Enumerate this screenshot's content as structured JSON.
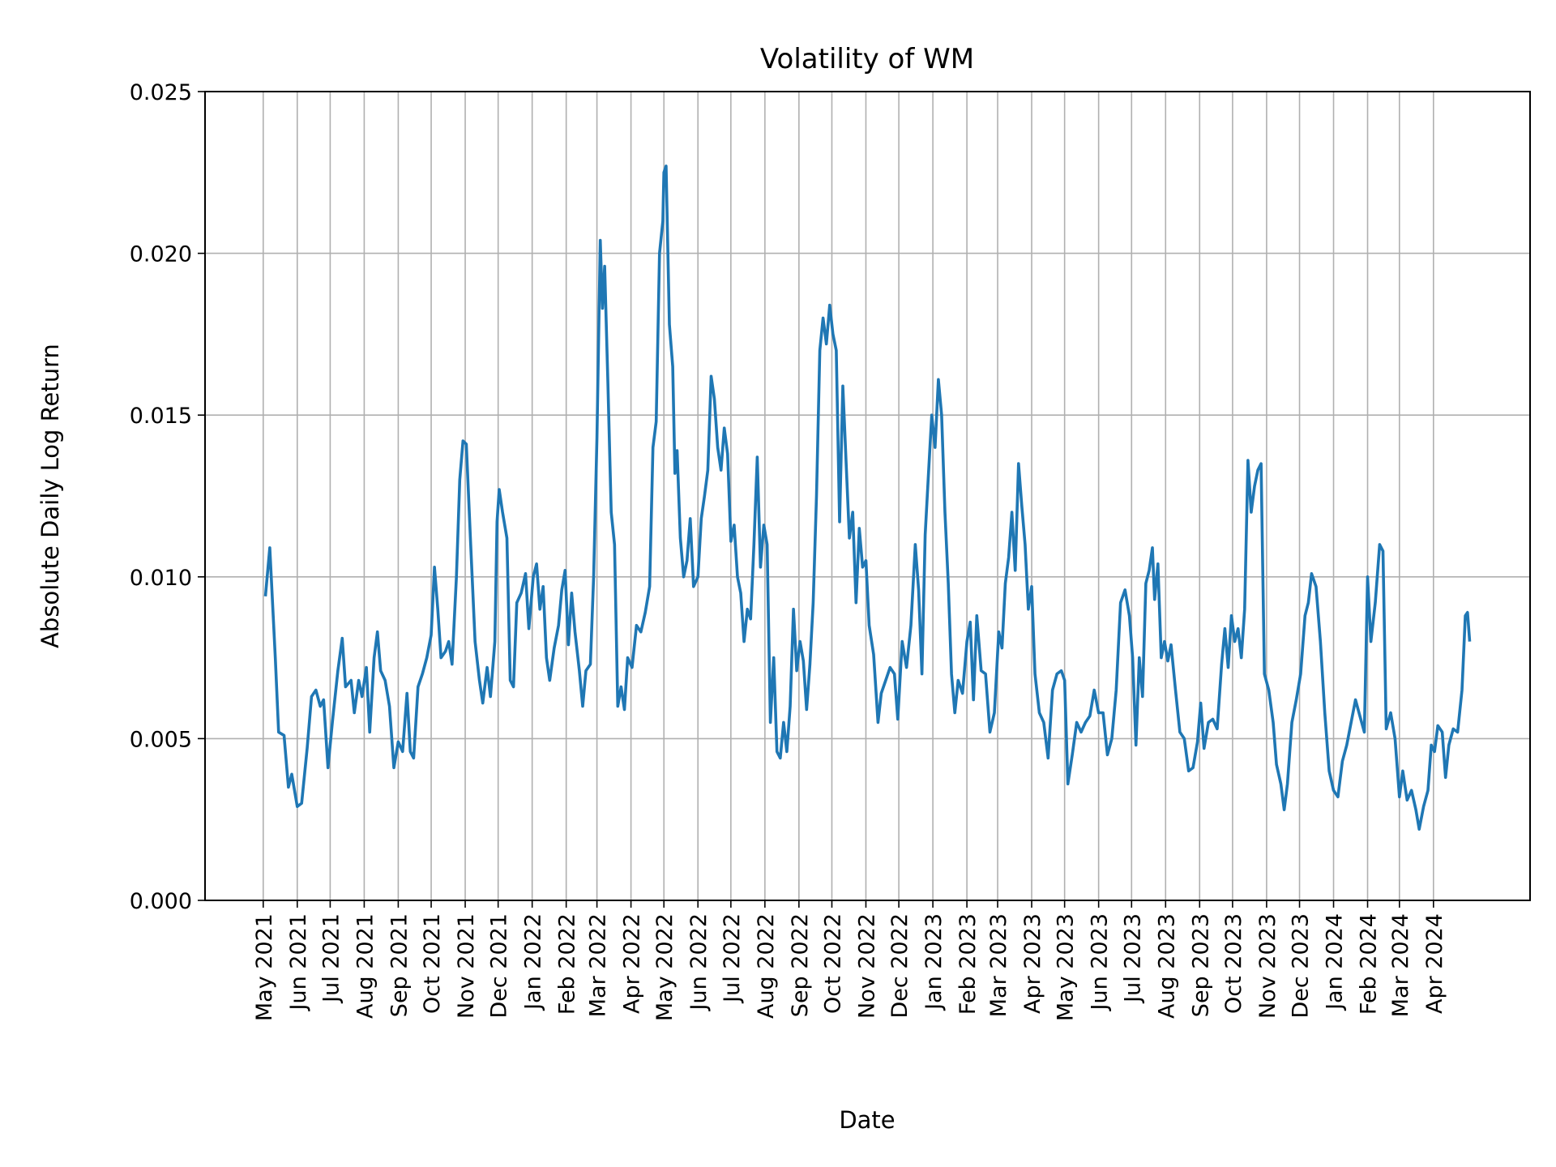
{
  "chart_data": {
    "type": "line",
    "title": "Volatility of WM",
    "xlabel": "Date",
    "ylabel": "Absolute Daily Log Return",
    "ylim": [
      0,
      0.025
    ],
    "xlim": [
      "2021-03-09",
      "2024-06-28"
    ],
    "grid": true,
    "line_color": "#1f77b4",
    "yticks": [
      "0.000",
      "0.005",
      "0.010",
      "0.015",
      "0.020",
      "0.025"
    ],
    "xticks": [
      {
        "date": "2021-05-01",
        "label": "May 2021"
      },
      {
        "date": "2021-06-01",
        "label": "Jun 2021"
      },
      {
        "date": "2021-07-01",
        "label": "Jul 2021"
      },
      {
        "date": "2021-08-01",
        "label": "Aug 2021"
      },
      {
        "date": "2021-09-01",
        "label": "Sep 2021"
      },
      {
        "date": "2021-10-01",
        "label": "Oct 2021"
      },
      {
        "date": "2021-11-01",
        "label": "Nov 2021"
      },
      {
        "date": "2021-12-01",
        "label": "Dec 2021"
      },
      {
        "date": "2022-01-01",
        "label": "Jan 2022"
      },
      {
        "date": "2022-02-01",
        "label": "Feb 2022"
      },
      {
        "date": "2022-03-01",
        "label": "Mar 2022"
      },
      {
        "date": "2022-04-01",
        "label": "Apr 2022"
      },
      {
        "date": "2022-05-01",
        "label": "May 2022"
      },
      {
        "date": "2022-06-01",
        "label": "Jun 2022"
      },
      {
        "date": "2022-07-01",
        "label": "Jul 2022"
      },
      {
        "date": "2022-08-01",
        "label": "Aug 2022"
      },
      {
        "date": "2022-09-01",
        "label": "Sep 2022"
      },
      {
        "date": "2022-10-01",
        "label": "Oct 2022"
      },
      {
        "date": "2022-11-01",
        "label": "Nov 2022"
      },
      {
        "date": "2022-12-01",
        "label": "Dec 2022"
      },
      {
        "date": "2023-01-01",
        "label": "Jan 2023"
      },
      {
        "date": "2023-02-01",
        "label": "Feb 2023"
      },
      {
        "date": "2023-03-01",
        "label": "Mar 2023"
      },
      {
        "date": "2023-04-01",
        "label": "Apr 2023"
      },
      {
        "date": "2023-05-01",
        "label": "May 2023"
      },
      {
        "date": "2023-06-01",
        "label": "Jun 2023"
      },
      {
        "date": "2023-07-01",
        "label": "Jul 2023"
      },
      {
        "date": "2023-08-01",
        "label": "Aug 2023"
      },
      {
        "date": "2023-09-01",
        "label": "Sep 2023"
      },
      {
        "date": "2023-10-01",
        "label": "Oct 2023"
      },
      {
        "date": "2023-11-01",
        "label": "Nov 2023"
      },
      {
        "date": "2023-12-01",
        "label": "Dec 2023"
      },
      {
        "date": "2024-01-01",
        "label": "Jan 2024"
      },
      {
        "date": "2024-02-01",
        "label": "Feb 2024"
      },
      {
        "date": "2024-03-01",
        "label": "Mar 2024"
      },
      {
        "date": "2024-04-01",
        "label": "Apr 2024"
      }
    ],
    "series": [
      {
        "x": [
          "2021-05-03",
          "2021-05-07",
          "2021-05-12",
          "2021-05-15",
          "2021-05-20",
          "2021-05-24",
          "2021-05-27",
          "2021-06-01",
          "2021-06-05",
          "2021-06-10",
          "2021-06-14",
          "2021-06-18",
          "2021-06-22",
          "2021-06-25",
          "2021-06-29",
          "2021-07-03",
          "2021-07-08",
          "2021-07-12",
          "2021-07-15",
          "2021-07-20",
          "2021-07-23",
          "2021-07-27",
          "2021-07-30",
          "2021-08-03",
          "2021-08-06",
          "2021-08-10",
          "2021-08-13",
          "2021-08-16",
          "2021-08-20",
          "2021-08-24",
          "2021-08-28",
          "2021-09-01",
          "2021-09-05",
          "2021-09-09",
          "2021-09-12",
          "2021-09-15",
          "2021-09-19",
          "2021-09-23",
          "2021-09-27",
          "2021-10-01",
          "2021-10-04",
          "2021-10-07",
          "2021-10-10",
          "2021-10-14",
          "2021-10-17",
          "2021-10-20",
          "2021-10-24",
          "2021-10-27",
          "2021-10-30",
          "2021-11-02",
          "2021-11-06",
          "2021-11-10",
          "2021-11-14",
          "2021-11-17",
          "2021-11-21",
          "2021-11-24",
          "2021-11-28",
          "2021-11-30",
          "2021-12-02",
          "2021-12-05",
          "2021-12-09",
          "2021-12-12",
          "2021-12-15",
          "2021-12-18",
          "2021-12-22",
          "2021-12-26",
          "2021-12-29",
          "2022-01-02",
          "2022-01-05",
          "2022-01-08",
          "2022-01-11",
          "2022-01-14",
          "2022-01-17",
          "2022-01-21",
          "2022-01-25",
          "2022-01-28",
          "2022-01-31",
          "2022-02-03",
          "2022-02-06",
          "2022-02-09",
          "2022-02-13",
          "2022-02-16",
          "2022-02-19",
          "2022-02-23",
          "2022-02-26",
          "2022-03-01",
          "2022-03-04",
          "2022-03-06",
          "2022-03-08",
          "2022-03-11",
          "2022-03-14",
          "2022-03-17",
          "2022-03-20",
          "2022-03-23",
          "2022-03-26",
          "2022-03-29",
          "2022-04-02",
          "2022-04-06",
          "2022-04-10",
          "2022-04-14",
          "2022-04-18",
          "2022-04-21",
          "2022-04-24",
          "2022-04-27",
          "2022-04-30",
          "2022-05-01",
          "2022-05-03",
          "2022-05-06",
          "2022-05-09",
          "2022-05-11",
          "2022-05-13",
          "2022-05-16",
          "2022-05-19",
          "2022-05-22",
          "2022-05-25",
          "2022-05-28",
          "2022-06-01",
          "2022-06-04",
          "2022-06-07",
          "2022-06-10",
          "2022-06-13",
          "2022-06-16",
          "2022-06-19",
          "2022-06-22",
          "2022-06-25",
          "2022-06-28",
          "2022-07-01",
          "2022-07-04",
          "2022-07-07",
          "2022-07-10",
          "2022-07-13",
          "2022-07-16",
          "2022-07-19",
          "2022-07-22",
          "2022-07-25",
          "2022-07-28",
          "2022-07-31",
          "2022-08-03",
          "2022-08-06",
          "2022-08-09",
          "2022-08-12",
          "2022-08-15",
          "2022-08-18",
          "2022-08-21",
          "2022-08-24",
          "2022-08-27",
          "2022-08-30",
          "2022-09-02",
          "2022-09-05",
          "2022-09-08",
          "2022-09-11",
          "2022-09-14",
          "2022-09-17",
          "2022-09-20",
          "2022-09-23",
          "2022-09-26",
          "2022-09-29",
          "2022-10-02",
          "2022-10-05",
          "2022-10-08",
          "2022-10-11",
          "2022-10-14",
          "2022-10-17",
          "2022-10-20",
          "2022-10-23",
          "2022-10-26",
          "2022-10-29",
          "2022-11-01",
          "2022-11-04",
          "2022-11-08",
          "2022-11-12",
          "2022-11-15",
          "2022-11-19",
          "2022-11-23",
          "2022-11-27",
          "2022-11-30",
          "2022-12-04",
          "2022-12-08",
          "2022-12-12",
          "2022-12-16",
          "2022-12-19",
          "2022-12-22",
          "2022-12-25",
          "2022-12-28",
          "2022-12-31",
          "2023-01-03",
          "2023-01-06",
          "2023-01-09",
          "2023-01-12",
          "2023-01-15",
          "2023-01-18",
          "2023-01-21",
          "2023-01-24",
          "2023-01-28",
          "2023-02-01",
          "2023-02-04",
          "2023-02-07",
          "2023-02-10",
          "2023-02-14",
          "2023-02-18",
          "2023-02-22",
          "2023-02-26",
          "2023-03-02",
          "2023-03-05",
          "2023-03-08",
          "2023-03-11",
          "2023-03-14",
          "2023-03-17",
          "2023-03-20",
          "2023-03-23",
          "2023-03-26",
          "2023-03-29",
          "2023-04-01",
          "2023-04-04",
          "2023-04-08",
          "2023-04-12",
          "2023-04-16",
          "2023-04-20",
          "2023-04-24",
          "2023-04-28",
          "2023-05-01",
          "2023-05-04",
          "2023-05-08",
          "2023-05-12",
          "2023-05-16",
          "2023-05-20",
          "2023-05-24",
          "2023-05-28",
          "2023-06-01",
          "2023-06-05",
          "2023-06-09",
          "2023-06-13",
          "2023-06-17",
          "2023-06-21",
          "2023-06-25",
          "2023-06-29",
          "2023-07-02",
          "2023-07-05",
          "2023-07-08",
          "2023-07-11",
          "2023-07-14",
          "2023-07-17",
          "2023-07-20",
          "2023-07-22",
          "2023-07-25",
          "2023-07-28",
          "2023-07-31",
          "2023-08-03",
          "2023-08-06",
          "2023-08-10",
          "2023-08-14",
          "2023-08-18",
          "2023-08-22",
          "2023-08-26",
          "2023-08-30",
          "2023-09-02",
          "2023-09-05",
          "2023-09-09",
          "2023-09-13",
          "2023-09-17",
          "2023-09-21",
          "2023-09-24",
          "2023-09-27",
          "2023-09-30",
          "2023-10-03",
          "2023-10-06",
          "2023-10-09",
          "2023-10-12",
          "2023-10-15",
          "2023-10-18",
          "2023-10-21",
          "2023-10-24",
          "2023-10-27",
          "2023-10-30",
          "2023-11-03",
          "2023-11-07",
          "2023-11-10",
          "2023-11-14",
          "2023-11-17",
          "2023-11-20",
          "2023-11-24",
          "2023-11-28",
          "2023-12-02",
          "2023-12-06",
          "2023-12-09",
          "2023-12-12",
          "2023-12-16",
          "2023-12-20",
          "2023-12-24",
          "2023-12-28",
          "2024-01-01",
          "2024-01-05",
          "2024-01-09",
          "2024-01-13",
          "2024-01-17",
          "2024-01-21",
          "2024-01-25",
          "2024-01-29",
          "2024-02-01",
          "2024-02-04",
          "2024-02-08",
          "2024-02-12",
          "2024-02-15",
          "2024-02-18",
          "2024-02-22",
          "2024-02-26",
          "2024-03-01",
          "2024-03-04",
          "2024-03-08",
          "2024-03-12",
          "2024-03-16",
          "2024-03-19",
          "2024-03-23",
          "2024-03-27",
          "2024-03-30",
          "2024-04-02",
          "2024-04-05",
          "2024-04-09",
          "2024-04-12",
          "2024-04-15",
          "2024-04-19",
          "2024-04-23",
          "2024-04-27",
          "2024-04-30",
          "2024-05-02",
          "2024-05-04"
        ],
        "y": [
          0.0094,
          0.0109,
          0.0075,
          0.0052,
          0.0051,
          0.0035,
          0.0039,
          0.0029,
          0.003,
          0.0047,
          0.0063,
          0.0065,
          0.006,
          0.0062,
          0.0041,
          0.0055,
          0.0071,
          0.0081,
          0.0066,
          0.0068,
          0.0058,
          0.0068,
          0.0063,
          0.0072,
          0.0052,
          0.0075,
          0.0083,
          0.0071,
          0.0068,
          0.006,
          0.0041,
          0.0049,
          0.0046,
          0.0064,
          0.0046,
          0.0044,
          0.0066,
          0.007,
          0.0075,
          0.0082,
          0.0103,
          0.009,
          0.0075,
          0.0077,
          0.008,
          0.0073,
          0.01,
          0.013,
          0.0142,
          0.0141,
          0.011,
          0.008,
          0.0068,
          0.0061,
          0.0072,
          0.0063,
          0.008,
          0.0117,
          0.0127,
          0.012,
          0.0112,
          0.0068,
          0.0066,
          0.0092,
          0.0095,
          0.0101,
          0.0084,
          0.01,
          0.0104,
          0.009,
          0.0097,
          0.0075,
          0.0068,
          0.0078,
          0.0085,
          0.0096,
          0.0102,
          0.0079,
          0.0095,
          0.0083,
          0.0071,
          0.006,
          0.0071,
          0.0073,
          0.01,
          0.0143,
          0.0204,
          0.0183,
          0.0196,
          0.016,
          0.012,
          0.011,
          0.006,
          0.0066,
          0.0059,
          0.0075,
          0.0072,
          0.0085,
          0.0083,
          0.0089,
          0.0097,
          0.014,
          0.0148,
          0.02,
          0.021,
          0.0225,
          0.0227,
          0.0178,
          0.0165,
          0.0132,
          0.0139,
          0.0112,
          0.01,
          0.0105,
          0.0118,
          0.0097,
          0.01,
          0.0118,
          0.0125,
          0.0133,
          0.0162,
          0.0155,
          0.014,
          0.0133,
          0.0146,
          0.0138,
          0.0111,
          0.0116,
          0.01,
          0.0095,
          0.008,
          0.009,
          0.0087,
          0.011,
          0.0137,
          0.0103,
          0.0116,
          0.011,
          0.0055,
          0.0075,
          0.0046,
          0.0044,
          0.0055,
          0.0046,
          0.006,
          0.009,
          0.0071,
          0.008,
          0.0074,
          0.0059,
          0.0073,
          0.0092,
          0.0125,
          0.017,
          0.018,
          0.0172,
          0.0184,
          0.0175,
          0.017,
          0.0117,
          0.0159,
          0.0135,
          0.0112,
          0.012,
          0.0092,
          0.0115,
          0.0103,
          0.0105,
          0.0085,
          0.0076,
          0.0055,
          0.0064,
          0.0068,
          0.0072,
          0.007,
          0.0056,
          0.008,
          0.0072,
          0.0085,
          0.011,
          0.0096,
          0.007,
          0.0113,
          0.0132,
          0.015,
          0.014,
          0.0161,
          0.015,
          0.012,
          0.0098,
          0.007,
          0.0058,
          0.0068,
          0.0064,
          0.008,
          0.0086,
          0.0062,
          0.0088,
          0.0071,
          0.007,
          0.0052,
          0.0058,
          0.0083,
          0.0078,
          0.0098,
          0.0106,
          0.012,
          0.0102,
          0.0135,
          0.0122,
          0.011,
          0.009,
          0.0097,
          0.007,
          0.0058,
          0.0055,
          0.0044,
          0.0065,
          0.007,
          0.0071,
          0.0068,
          0.0036,
          0.0045,
          0.0055,
          0.0052,
          0.0055,
          0.0057,
          0.0065,
          0.0058,
          0.0058,
          0.0045,
          0.005,
          0.0065,
          0.0092,
          0.0096,
          0.0088,
          0.0075,
          0.0048,
          0.0075,
          0.0063,
          0.0098,
          0.0102,
          0.0109,
          0.0093,
          0.0104,
          0.0075,
          0.008,
          0.0074,
          0.0079,
          0.0065,
          0.0052,
          0.005,
          0.004,
          0.0041,
          0.0049,
          0.0061,
          0.0047,
          0.0055,
          0.0056,
          0.0053,
          0.0073,
          0.0084,
          0.0072,
          0.0088,
          0.008,
          0.0084,
          0.0075,
          0.009,
          0.0136,
          0.012,
          0.0128,
          0.0133,
          0.0135,
          0.007,
          0.0065,
          0.0055,
          0.0042,
          0.0036,
          0.0028,
          0.0036,
          0.0055,
          0.0062,
          0.007,
          0.0088,
          0.0092,
          0.0101,
          0.0097,
          0.008,
          0.0058,
          0.004,
          0.0034,
          0.0032,
          0.0043,
          0.0048,
          0.0055,
          0.0062,
          0.0057,
          0.0052,
          0.01,
          0.008,
          0.0092,
          0.011,
          0.0108,
          0.0053,
          0.0058,
          0.005,
          0.0032,
          0.004,
          0.0031,
          0.0034,
          0.0028,
          0.0022,
          0.0029,
          0.0034,
          0.0048,
          0.0046,
          0.0054,
          0.0052,
          0.0038,
          0.0048,
          0.0053,
          0.0052,
          0.0065,
          0.0088,
          0.0089,
          0.008
        ]
      }
    ]
  }
}
